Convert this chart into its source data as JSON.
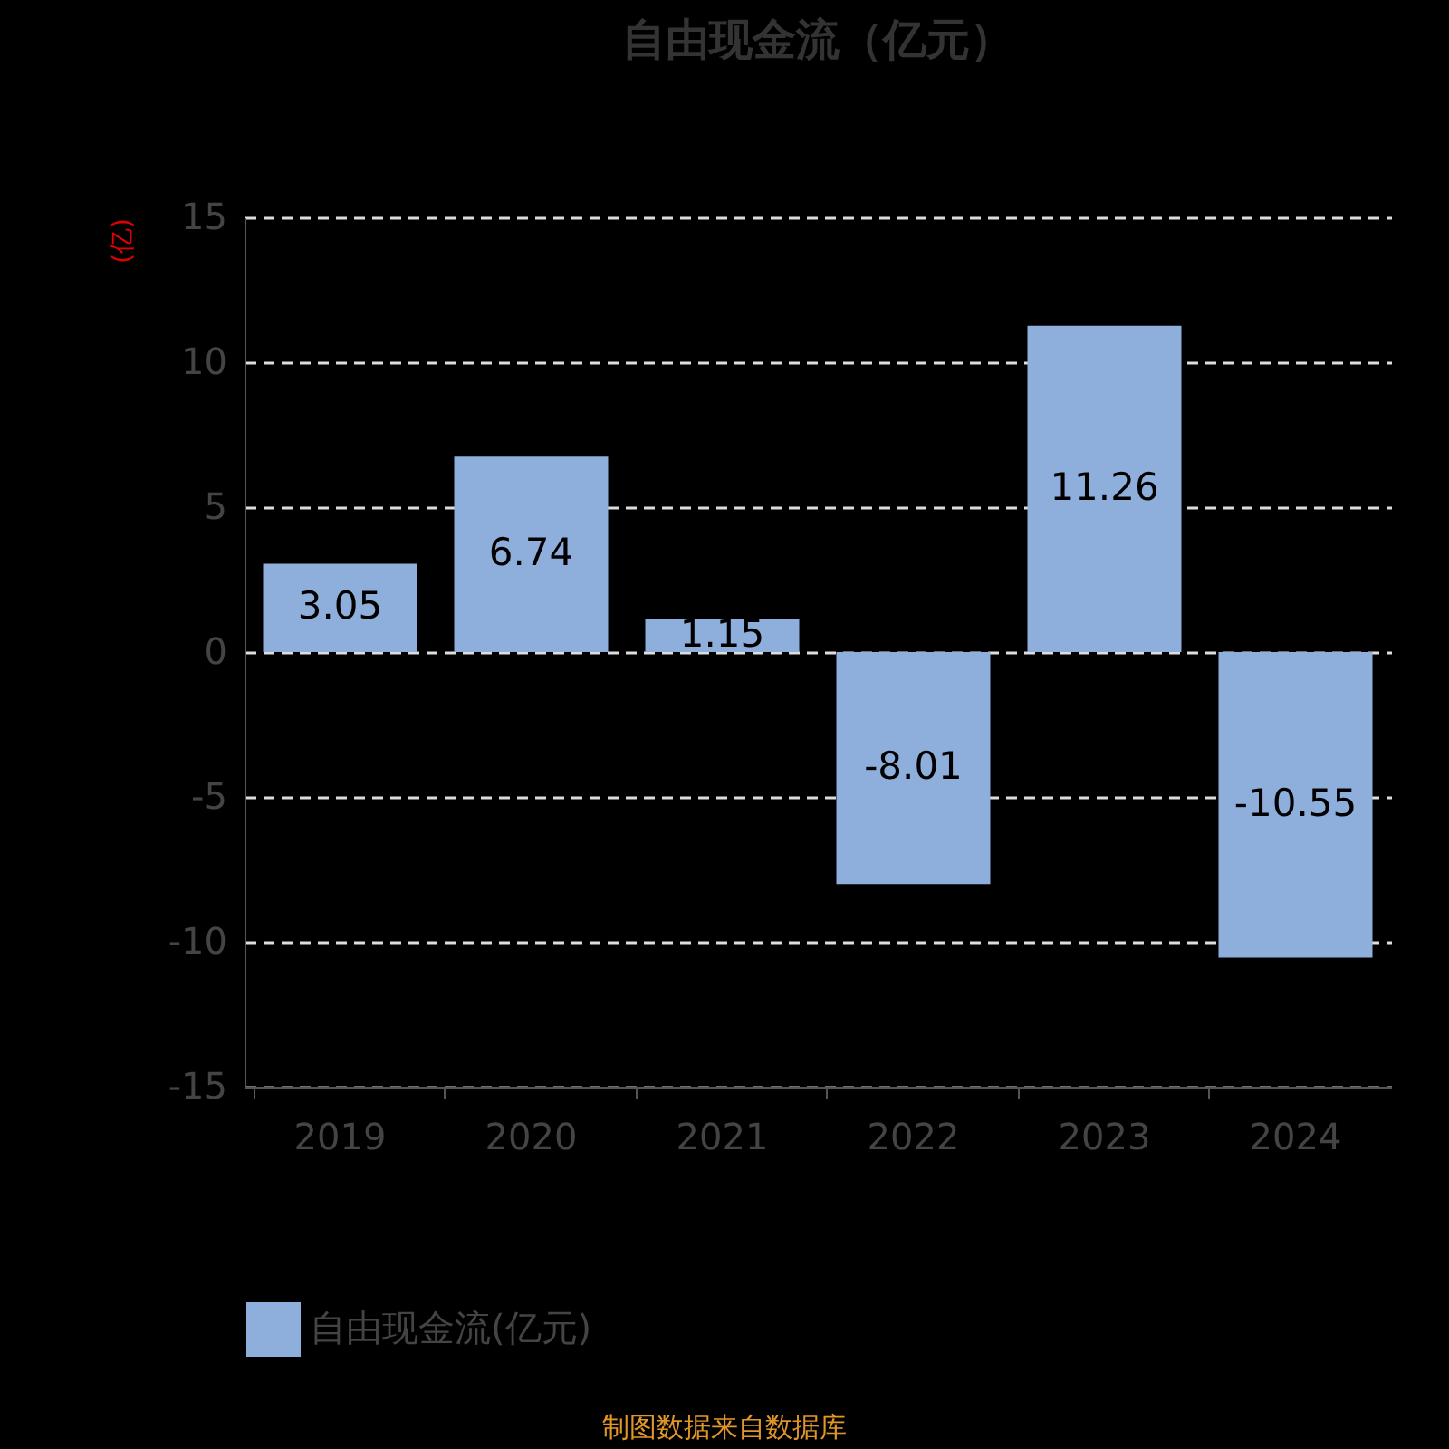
{
  "chart_data": {
    "type": "bar",
    "title": "自由现金流（亿元）",
    "ylabel": "(亿)",
    "categories": [
      "2019",
      "2020",
      "2021",
      "2022",
      "2023",
      "2024"
    ],
    "series": [
      {
        "name": "自由现金流(亿元)",
        "color": "#8eaedb",
        "values": [
          3.05,
          6.74,
          1.15,
          -8.01,
          11.26,
          -10.55
        ]
      }
    ],
    "ylim": [
      -15,
      15
    ],
    "yticks": [
      -15,
      -10,
      -5,
      0,
      5,
      10,
      15
    ],
    "grid": "y",
    "legend": "bottom",
    "data_labels": true,
    "annotations": [
      "制图数据来自数据库"
    ]
  }
}
